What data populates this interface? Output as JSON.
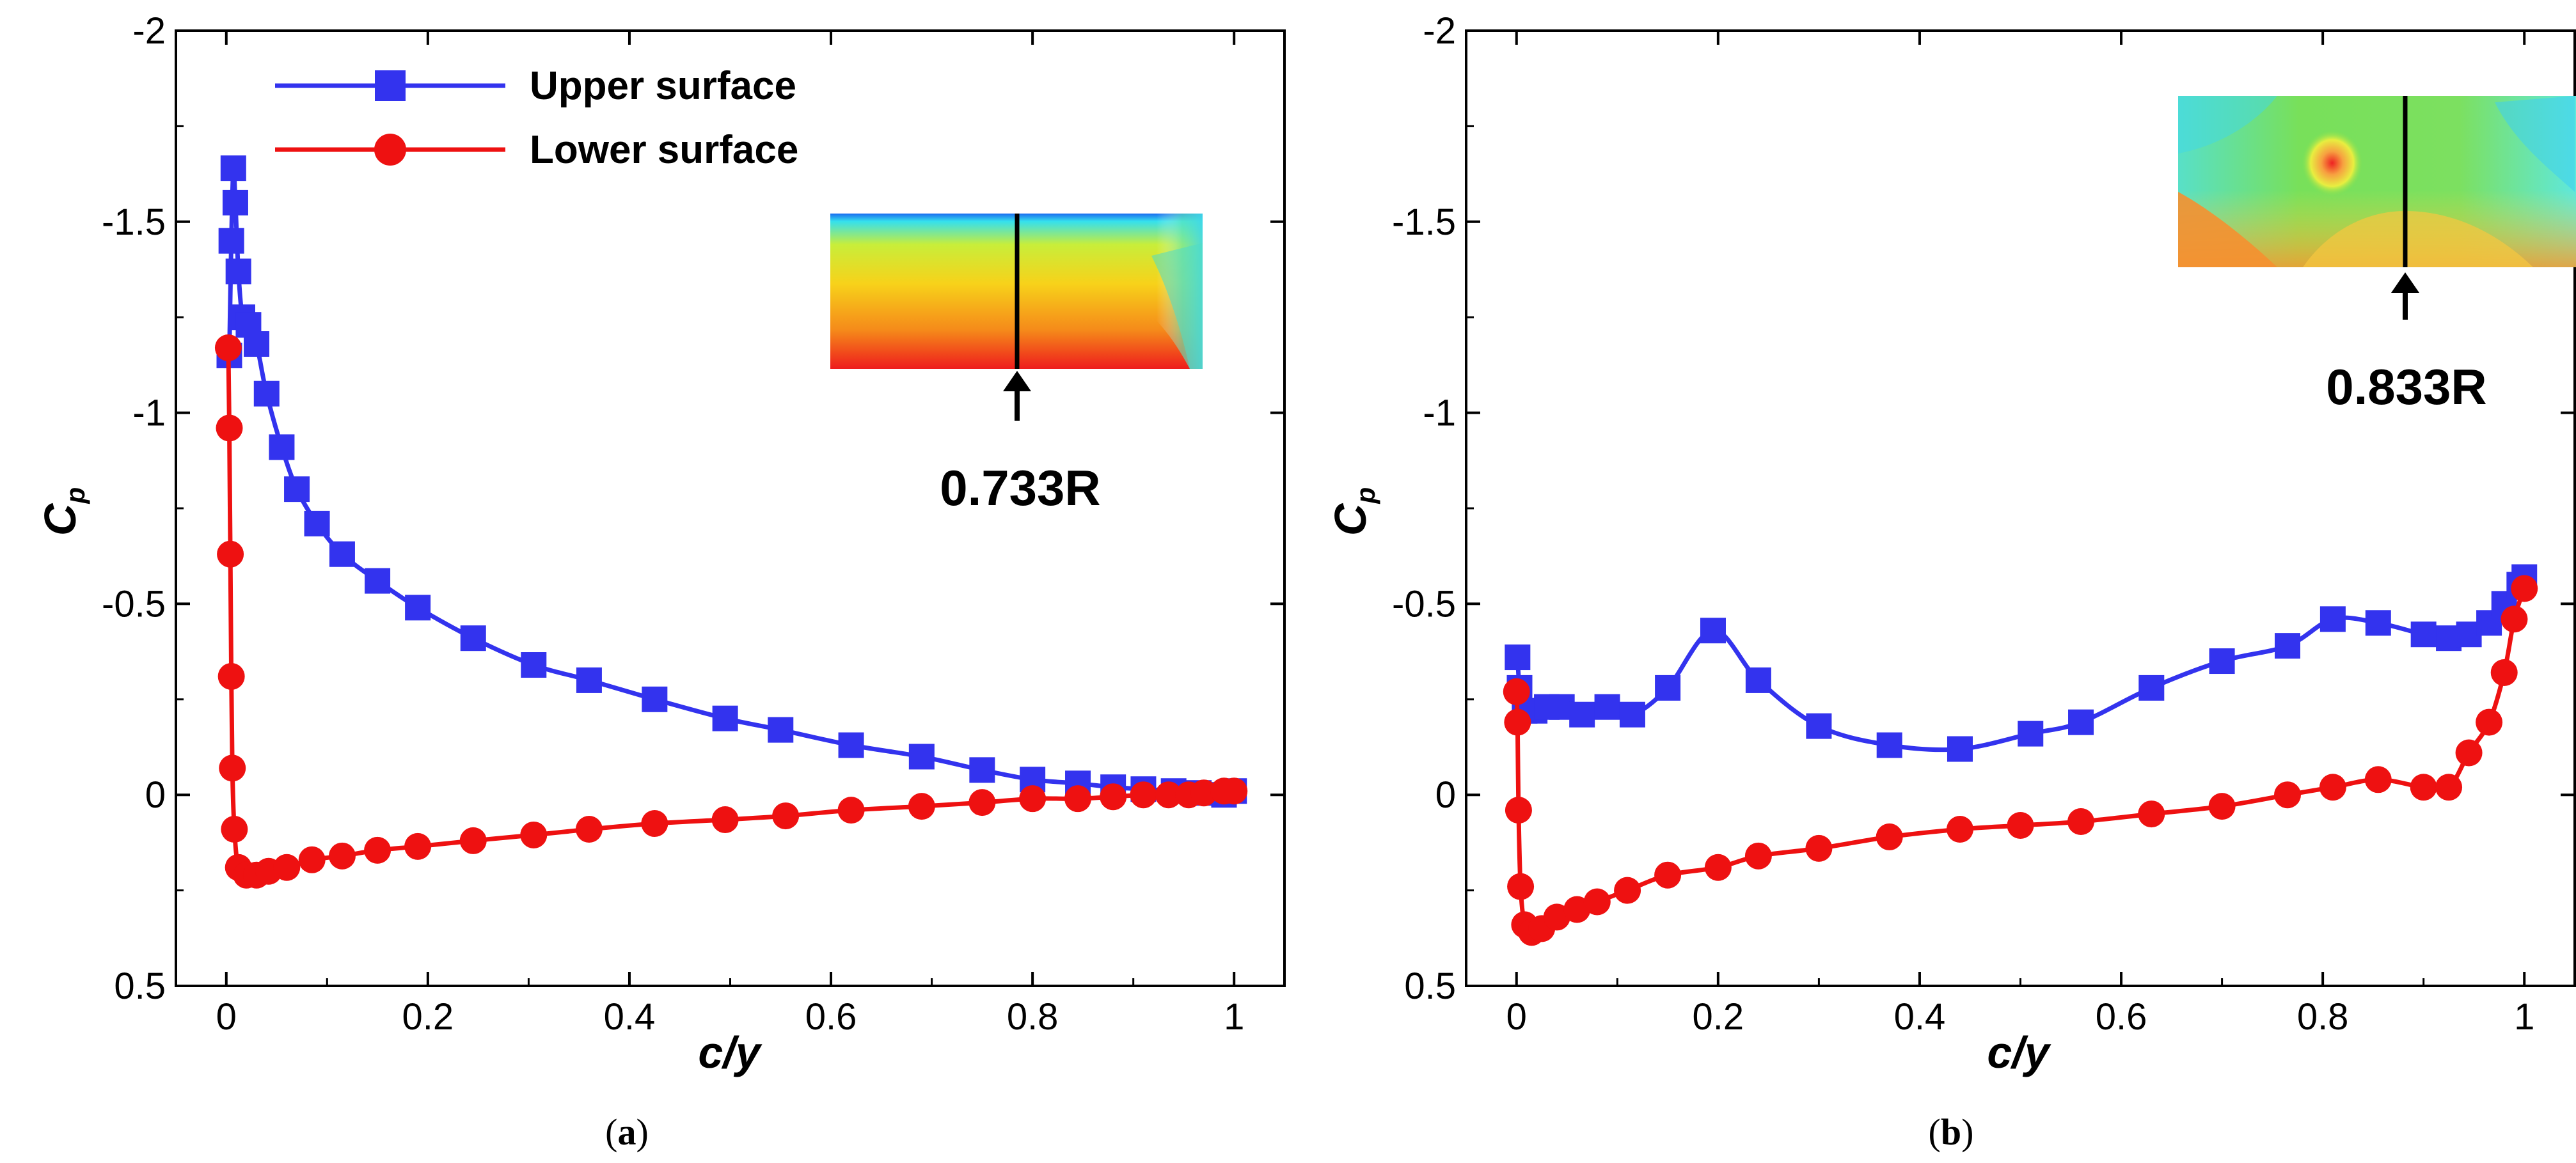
{
  "chart_data": [
    {
      "type": "line",
      "panel_label": "a",
      "xlabel": "c/y",
      "ylabel": "C",
      "ylabel_subscript": "p",
      "xlim": [
        -0.05,
        1.05
      ],
      "ylim": [
        0.5,
        -2
      ],
      "x_ticks": [
        0,
        0.2,
        0.4,
        0.6,
        0.8,
        1
      ],
      "x_tick_labels": [
        "0",
        "0.2",
        "0.4",
        "0.6",
        "0.8",
        "1"
      ],
      "y_ticks": [
        -2,
        -1.5,
        -1,
        -0.5,
        0,
        0.5
      ],
      "y_tick_labels": [
        "-2",
        "-1.5",
        "-1",
        "-0.5",
        "0",
        "0.5"
      ],
      "grid": false,
      "legend": {
        "position": "top-left",
        "entries": [
          {
            "name": "Upper surface",
            "color": "#3333ee",
            "marker": "square"
          },
          {
            "name": "Lower surface",
            "color": "#ee1111",
            "marker": "circle"
          }
        ]
      },
      "annotation": {
        "text": "0.733R",
        "x": 0.833
      },
      "series": [
        {
          "name": "Upper surface",
          "color": "#3333ee",
          "marker": "square",
          "x": [
            0.003,
            0.005,
            0.007,
            0.009,
            0.012,
            0.016,
            0.022,
            0.03,
            0.04,
            0.055,
            0.07,
            0.09,
            0.115,
            0.15,
            0.19,
            0.245,
            0.305,
            0.36,
            0.425,
            0.495,
            0.55,
            0.62,
            0.69,
            0.75,
            0.8,
            0.845,
            0.88,
            0.91,
            0.94,
            0.965,
            0.99,
            1.0
          ],
          "y": [
            -1.15,
            -1.45,
            -1.64,
            -1.55,
            -1.37,
            -1.25,
            -1.23,
            -1.18,
            -1.05,
            -0.91,
            -0.8,
            -0.71,
            -0.63,
            -0.56,
            -0.49,
            -0.41,
            -0.34,
            -0.3,
            -0.25,
            -0.2,
            -0.17,
            -0.13,
            -0.1,
            -0.065,
            -0.04,
            -0.03,
            -0.02,
            -0.015,
            -0.01,
            -0.005,
            0.0,
            -0.01
          ]
        },
        {
          "name": "Lower surface",
          "color": "#ee1111",
          "marker": "circle",
          "x": [
            0.002,
            0.003,
            0.004,
            0.005,
            0.006,
            0.008,
            0.012,
            0.02,
            0.03,
            0.042,
            0.06,
            0.085,
            0.115,
            0.15,
            0.19,
            0.245,
            0.305,
            0.36,
            0.425,
            0.495,
            0.555,
            0.62,
            0.69,
            0.75,
            0.8,
            0.845,
            0.88,
            0.91,
            0.935,
            0.955,
            0.97,
            0.99,
            1.0
          ],
          "y": [
            -1.17,
            -0.96,
            -0.63,
            -0.31,
            -0.07,
            0.09,
            0.19,
            0.21,
            0.21,
            0.2,
            0.19,
            0.17,
            0.16,
            0.145,
            0.135,
            0.12,
            0.105,
            0.09,
            0.075,
            0.065,
            0.055,
            0.04,
            0.03,
            0.02,
            0.01,
            0.01,
            0.005,
            0.0,
            0.0,
            0.0,
            -0.005,
            -0.01,
            -0.01
          ]
        }
      ]
    },
    {
      "type": "line",
      "panel_label": "b",
      "xlabel": "c/y",
      "ylabel": "C",
      "ylabel_subscript": "p",
      "xlim": [
        -0.05,
        1.05
      ],
      "ylim": [
        0.5,
        -2
      ],
      "x_ticks": [
        0,
        0.2,
        0.4,
        0.6,
        0.8,
        1
      ],
      "x_tick_labels": [
        "0",
        "0.2",
        "0.4",
        "0.6",
        "0.8",
        "1"
      ],
      "y_ticks": [
        -2,
        -1.5,
        -1,
        -0.5,
        0,
        0.5
      ],
      "y_tick_labels": [
        "-2",
        "-1.5",
        "-1",
        "-0.5",
        "0",
        "0.5"
      ],
      "grid": false,
      "annotation": {
        "text": "0.833R",
        "x": 0.85
      },
      "series": [
        {
          "name": "Upper surface",
          "color": "#3333ee",
          "marker": "square",
          "x": [
            0.001,
            0.003,
            0.008,
            0.018,
            0.03,
            0.045,
            0.065,
            0.09,
            0.115,
            0.15,
            0.195,
            0.24,
            0.3,
            0.37,
            0.44,
            0.51,
            0.56,
            0.63,
            0.7,
            0.765,
            0.81,
            0.855,
            0.9,
            0.925,
            0.945,
            0.965,
            0.98,
            0.995,
            1.0
          ],
          "y": [
            -0.36,
            -0.28,
            -0.22,
            -0.22,
            -0.23,
            -0.23,
            -0.21,
            -0.23,
            -0.21,
            -0.28,
            -0.43,
            -0.3,
            -0.18,
            -0.13,
            -0.12,
            -0.16,
            -0.19,
            -0.28,
            -0.35,
            -0.39,
            -0.46,
            -0.45,
            -0.42,
            -0.41,
            -0.42,
            -0.45,
            -0.5,
            -0.55,
            -0.57
          ]
        },
        {
          "name": "Lower surface",
          "color": "#ee1111",
          "marker": "circle",
          "x": [
            0.0,
            0.001,
            0.002,
            0.004,
            0.008,
            0.015,
            0.025,
            0.04,
            0.06,
            0.08,
            0.11,
            0.15,
            0.2,
            0.24,
            0.3,
            0.37,
            0.44,
            0.5,
            0.56,
            0.63,
            0.7,
            0.765,
            0.81,
            0.855,
            0.9,
            0.925,
            0.945,
            0.965,
            0.98,
            0.99,
            1.0
          ],
          "y": [
            -0.27,
            -0.19,
            0.04,
            0.24,
            0.34,
            0.36,
            0.35,
            0.32,
            0.3,
            0.28,
            0.25,
            0.21,
            0.19,
            0.16,
            0.14,
            0.11,
            0.09,
            0.08,
            0.07,
            0.05,
            0.03,
            0.0,
            -0.02,
            -0.04,
            -0.02,
            -0.02,
            -0.11,
            -0.19,
            -0.32,
            -0.46,
            -0.54
          ]
        }
      ]
    }
  ]
}
